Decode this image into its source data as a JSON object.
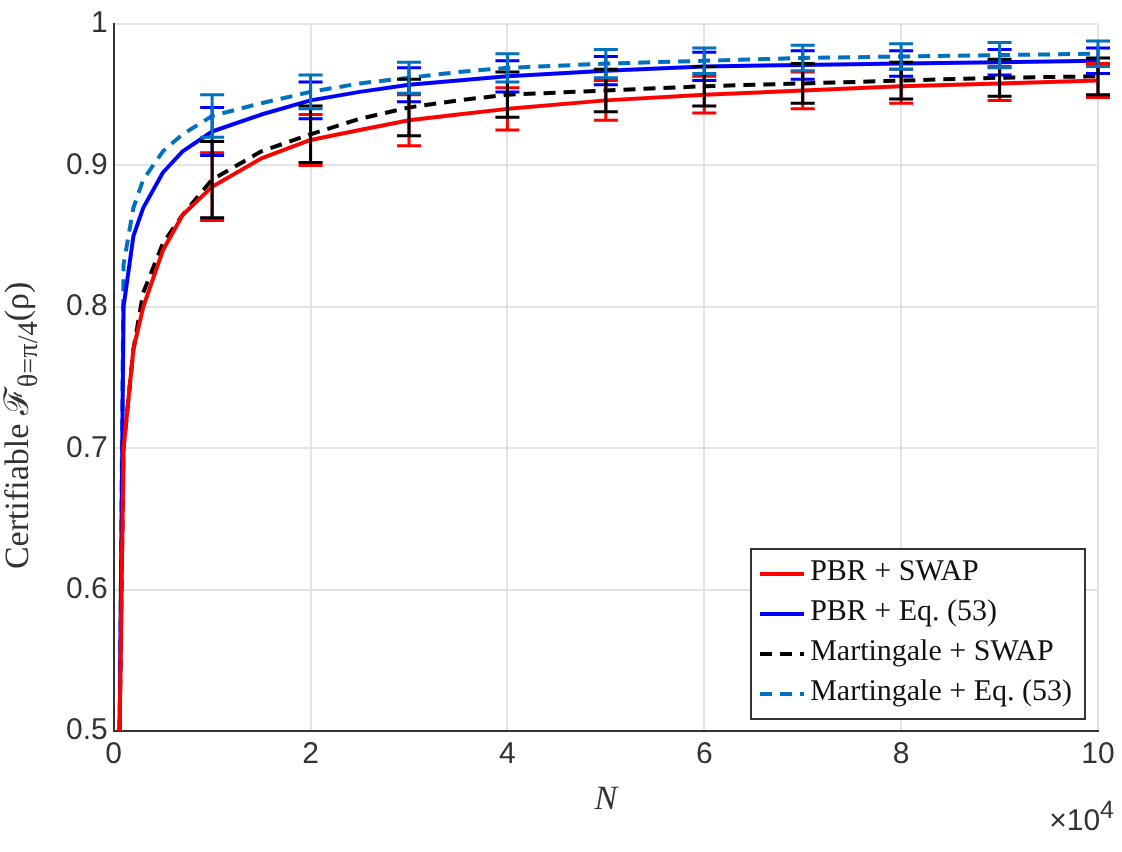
{
  "chart_data": {
    "type": "line",
    "xlabel": "N",
    "ylabel": "Certifiable ℱ$_{θ=π/4}$(ρ)",
    "annotations": [
      "×10$^{4}$"
    ],
    "x": [
      0.06,
      0.1,
      0.2,
      0.3,
      0.5,
      0.7,
      1,
      1.5,
      2,
      2.5,
      3,
      3.5,
      4,
      5,
      6,
      7,
      8,
      9,
      10
    ],
    "series": [
      {
        "name": "PBR + SWAP",
        "color": "#ff0000",
        "line_style": "solid",
        "values": [
          0.5,
          0.7,
          0.77,
          0.8,
          0.84,
          0.865,
          0.885,
          0.905,
          0.918,
          0.925,
          0.932,
          0.936,
          0.94,
          0.946,
          0.95,
          0.953,
          0.956,
          0.958,
          0.96
        ],
        "errors": [
          null,
          null,
          null,
          null,
          null,
          null,
          0.024,
          null,
          0.018,
          null,
          0.018,
          null,
          0.015,
          0.014,
          0.013,
          0.013,
          0.012,
          0.012,
          0.012
        ]
      },
      {
        "name": "PBR + Eq. (53)",
        "color": "#0000ff",
        "line_style": "solid",
        "values": [
          0.5,
          0.8,
          0.85,
          0.87,
          0.895,
          0.91,
          0.924,
          0.936,
          0.946,
          0.952,
          0.957,
          0.96,
          0.963,
          0.967,
          0.97,
          0.971,
          0.972,
          0.973,
          0.974
        ],
        "errors": [
          null,
          null,
          null,
          null,
          null,
          null,
          0.017,
          null,
          0.013,
          null,
          0.012,
          null,
          0.011,
          0.01,
          0.01,
          0.01,
          0.009,
          0.009,
          0.009
        ]
      },
      {
        "name": "Martingale + SWAP",
        "color": "#000000",
        "line_style": "dashed",
        "values": [
          0.5,
          0.7,
          0.77,
          0.81,
          0.845,
          0.865,
          0.89,
          0.91,
          0.922,
          0.933,
          0.941,
          0.946,
          0.95,
          0.953,
          0.956,
          0.958,
          0.96,
          0.962,
          0.963
        ],
        "errors": [
          null,
          null,
          null,
          null,
          null,
          null,
          0.027,
          null,
          0.02,
          null,
          0.02,
          null,
          0.016,
          0.015,
          0.014,
          0.014,
          0.013,
          0.013,
          0.013
        ]
      },
      {
        "name": "Martingale + Eq. (53)",
        "color": "#0072bd",
        "line_style": "dashed",
        "values": [
          0.5,
          0.83,
          0.87,
          0.89,
          0.91,
          0.922,
          0.935,
          0.944,
          0.952,
          0.958,
          0.962,
          0.966,
          0.969,
          0.972,
          0.974,
          0.976,
          0.977,
          0.978,
          0.979
        ],
        "errors": [
          null,
          null,
          null,
          null,
          null,
          null,
          0.015,
          null,
          0.012,
          null,
          0.011,
          null,
          0.01,
          0.01,
          0.009,
          0.009,
          0.009,
          0.009,
          0.009
        ]
      }
    ],
    "xlim": [
      0,
      10
    ],
    "xticks": [
      0,
      2,
      4,
      6,
      8,
      10
    ],
    "ylim": [
      0.5,
      1
    ],
    "yticks": [
      0.5,
      0.6,
      0.7,
      0.8,
      0.9,
      1
    ],
    "grid": true,
    "legend": "bottom right",
    "marker": "none"
  }
}
